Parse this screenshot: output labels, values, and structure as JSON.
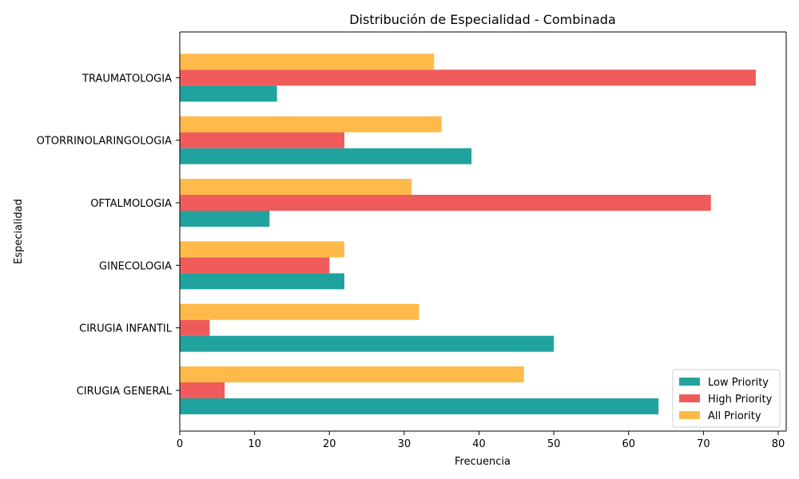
{
  "chart_data": {
    "type": "bar",
    "orientation": "horizontal",
    "title": "Distribución de Especialidad - Combinada",
    "xlabel": "Frecuencia",
    "ylabel": "Especialidad",
    "xlim": [
      0,
      80
    ],
    "xticks": [
      0,
      10,
      20,
      30,
      40,
      50,
      60,
      70,
      80
    ],
    "categories": [
      "CIRUGIA GENERAL",
      "CIRUGIA INFANTIL",
      "GINECOLOGIA",
      "OFTALMOLOGIA",
      "OTORRINOLARINGOLOGIA",
      "TRAUMATOLOGIA"
    ],
    "series": [
      {
        "name": "Low Priority",
        "color": "#20a39e",
        "values": [
          64,
          50,
          22,
          12,
          39,
          13
        ]
      },
      {
        "name": "High Priority",
        "color": "#ef5b5b",
        "values": [
          6,
          4,
          20,
          71,
          22,
          77
        ]
      },
      {
        "name": "All Priority",
        "color": "#ffba49",
        "values": [
          46,
          32,
          22,
          31,
          35,
          34
        ]
      }
    ],
    "legend_position": "lower-right",
    "grid": false
  }
}
